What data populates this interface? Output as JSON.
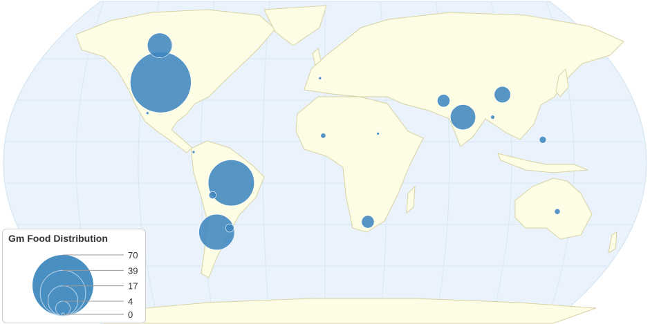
{
  "map": {
    "type": "bubble-map",
    "projection": "robinson",
    "colors": {
      "ocean": "#eaf3fb",
      "land": "#fdfde6",
      "border": "#d8d2a2",
      "bubble": "#3f86bf"
    },
    "bubbles": [
      {
        "region": "United States",
        "lat": 38,
        "lon": -98,
        "value": 70
      },
      {
        "region": "Brazil",
        "lat": -11,
        "lon": -53,
        "value": 40
      },
      {
        "region": "Argentina",
        "lat": -35,
        "lon": -64,
        "value": 24
      },
      {
        "region": "Canada",
        "lat": 56,
        "lon": -106,
        "value": 11.5
      },
      {
        "region": "India",
        "lat": 21,
        "lon": 79,
        "value": 12
      },
      {
        "region": "China",
        "lat": 32,
        "lon": 104,
        "value": 5
      },
      {
        "region": "Pakistan",
        "lat": 29,
        "lon": 69,
        "value": 3
      },
      {
        "region": "South Africa",
        "lat": -30,
        "lon": 25,
        "value": 3
      },
      {
        "region": "Uruguay",
        "lat": -33,
        "lon": -56,
        "value": 1.3
      },
      {
        "region": "Bolivia",
        "lat": -17,
        "lon": -64,
        "value": 1
      },
      {
        "region": "Philippines",
        "lat": 10,
        "lon": 123,
        "value": 0.9
      },
      {
        "region": "Australia",
        "lat": -25,
        "lon": 134,
        "value": 0.6
      },
      {
        "region": "Burkina Faso",
        "lat": 12,
        "lon": -1,
        "value": 0.5
      },
      {
        "region": "Myanmar",
        "lat": 21,
        "lon": 96,
        "value": 0.3
      },
      {
        "region": "Mexico",
        "lat": 23,
        "lon": -102,
        "value": 0.1
      },
      {
        "region": "Colombia",
        "lat": 4,
        "lon": -74,
        "value": 0.1
      },
      {
        "region": "Spain",
        "lat": 40,
        "lon": -3,
        "value": 0.1
      },
      {
        "region": "Sudan",
        "lat": 13,
        "lon": 30,
        "value": 0.1
      }
    ]
  },
  "legend": {
    "title": "Gm Food Distribution",
    "values": [
      "70",
      "39",
      "17",
      "4",
      "0"
    ],
    "max": 70
  }
}
